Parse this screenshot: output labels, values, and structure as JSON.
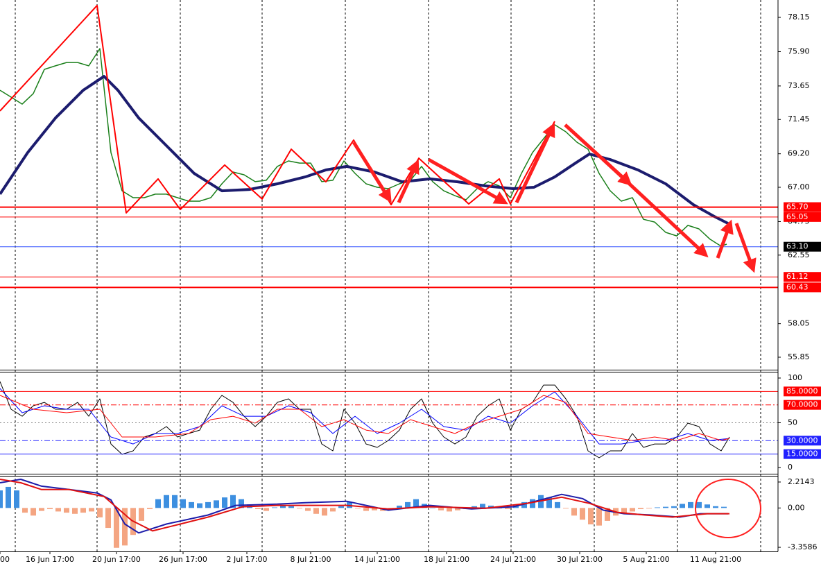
{
  "chart_data": [
    {
      "type": "line",
      "xlim": [
        0,
        280.5
      ],
      "ylim": [
        55.03,
        79.29
      ],
      "yticks": [
        78.15,
        {
          "value": 75.9,
          "label": "75.90"
        },
        73.65,
        71.45,
        {
          "value": 69.2,
          "label": "69.20"
        },
        {
          "value": 67,
          "label": "67.00"
        },
        64.75,
        62.55,
        58.05,
        55.85
      ],
      "series": [
        {
          "color": "#1a7f1a",
          "width": 1.5,
          "x": [
            0,
            4,
            8,
            12,
            16,
            20,
            24,
            28,
            32,
            36,
            40,
            44,
            48,
            52,
            56,
            60,
            64,
            68,
            72,
            76,
            80,
            84,
            88,
            92,
            96,
            100,
            104,
            108,
            112,
            116,
            120,
            124,
            128,
            132,
            136,
            140,
            144,
            148,
            152,
            156,
            160,
            164,
            168,
            172,
            176,
            180,
            184,
            188,
            192,
            196,
            200,
            204,
            208,
            212,
            216,
            220,
            224,
            228,
            232,
            236,
            240,
            244,
            248,
            252,
            256,
            260,
            262
          ],
          "values": [
            73.37,
            72.92,
            72.46,
            73.15,
            74.74,
            74.97,
            75.19,
            75.19,
            74.97,
            76.1,
            69.28,
            66.77,
            66.32,
            66.32,
            66.55,
            66.55,
            66.32,
            66.09,
            66.09,
            66.32,
            67.23,
            68.0,
            67.82,
            67.37,
            67.46,
            68.37,
            68.73,
            68.59,
            68.59,
            67.37,
            67.46,
            68.73,
            67.91,
            67.23,
            67.0,
            66.91,
            67.23,
            67.46,
            68.37,
            67.37,
            66.77,
            66.45,
            66.18,
            66.91,
            67.37,
            67.09,
            66.32,
            67.91,
            69.28,
            70.19,
            71.1,
            70.64,
            69.96,
            69.5,
            67.91,
            66.77,
            66.09,
            66.32,
            64.9,
            64.72,
            64.04,
            63.81,
            64.5,
            64.27,
            63.59,
            63.13,
            63.27
          ]
        },
        {
          "color": "#1c1c6e",
          "width": 4,
          "x": [
            0,
            10,
            20,
            30,
            37.5,
            42.5,
            50,
            60,
            70,
            80,
            90,
            100,
            110,
            117.5,
            125,
            135,
            145,
            155,
            165,
            175,
            185,
            192.5,
            200,
            207.5,
            212.5,
            220,
            230,
            240,
            250,
            257.5,
            262.5
          ],
          "values": [
            66.55,
            69.28,
            71.55,
            73.37,
            74.28,
            73.37,
            71.55,
            69.73,
            67.91,
            66.77,
            66.86,
            67.23,
            67.68,
            68.14,
            68.37,
            68.0,
            67.36,
            67.55,
            67.36,
            67.09,
            66.91,
            67.0,
            67.68,
            68.59,
            69.18,
            68.82,
            68.14,
            67.23,
            65.86,
            65.09,
            64.63
          ]
        },
        {
          "color": "#ff0000",
          "width": 2,
          "x": [
            0,
            35,
            45.5,
            57,
            65,
            81,
            94.5,
            105,
            117.5,
            127.5,
            141,
            151,
            169,
            180,
            184,
            200
          ],
          "values": [
            72.01,
            78.93,
            65.32,
            67.55,
            65.54,
            68.46,
            66.23,
            69.5,
            67.36,
            70.1,
            65.86,
            68.91,
            65.91,
            67.55,
            65.91,
            71.33
          ]
        }
      ],
      "levels": [
        {
          "value": 65.7,
          "label": "65.70",
          "color": "#ff0000",
          "box": "#ff0000",
          "width": 2,
          "style": "solid"
        },
        {
          "value": 65.05,
          "label": "65.05",
          "color": "#ff0000",
          "box": "#ff0000",
          "width": 1,
          "style": "solid"
        },
        {
          "value": 63.1,
          "label": "63.10",
          "color": "#3050ff",
          "box": "#000000",
          "width": 1,
          "style": "solid"
        },
        {
          "value": 61.12,
          "label": "61.12",
          "color": "#ff0000",
          "box": "#ff0000",
          "width": 1,
          "style": "solid"
        },
        {
          "value": 60.43,
          "label": "60.43",
          "color": "#ff0000",
          "box": "#ff0000",
          "width": 2,
          "style": "solid"
        }
      ]
    },
    {
      "type": "line",
      "xlim": [
        0,
        280.5
      ],
      "ylim": [
        -7,
        106.2
      ],
      "yticks": [
        100,
        50,
        0
      ],
      "series": [
        {
          "color": "#000000",
          "width": 1,
          "x": [
            0,
            4,
            8,
            12,
            16,
            20,
            24,
            28,
            32,
            36,
            40,
            44,
            48,
            52,
            56,
            60,
            64,
            68,
            72,
            76,
            80,
            84,
            88,
            92,
            96,
            100,
            104,
            108,
            112,
            116,
            120,
            124,
            128,
            132,
            136,
            140,
            144,
            148,
            152,
            156,
            160,
            164,
            168,
            172,
            176,
            180,
            184,
            188,
            192,
            196,
            200,
            204,
            208,
            212,
            216,
            220,
            224,
            228,
            232,
            236,
            240,
            244,
            248,
            252,
            256,
            260,
            263
          ],
          "values": [
            96.1,
            65.1,
            57.3,
            69.0,
            72.8,
            65.1,
            65.1,
            72.8,
            57.3,
            76.7,
            26.3,
            14.7,
            18.6,
            34.1,
            38.0,
            45.7,
            34.1,
            38.0,
            41.8,
            65.1,
            80.6,
            72.8,
            57.3,
            45.7,
            57.3,
            72.8,
            76.7,
            65.1,
            65.1,
            26.3,
            18.6,
            65.1,
            49.6,
            26.3,
            22.5,
            30.2,
            41.8,
            65.1,
            76.7,
            49.6,
            34.1,
            26.3,
            34.1,
            57.3,
            69.0,
            76.7,
            41.8,
            65.1,
            72.8,
            92.2,
            92.2,
            76.7,
            57.3,
            18.6,
            10.8,
            18.6,
            18.6,
            38.0,
            22.5,
            26.3,
            26.3,
            34.1,
            49.6,
            45.7,
            26.3,
            18.6,
            34.1
          ]
        },
        {
          "color": "#0000ff",
          "width": 1,
          "x": [
            0,
            8,
            16,
            24,
            32,
            40,
            48,
            56,
            64,
            72,
            80,
            88,
            96,
            104,
            112,
            120,
            128,
            136,
            144,
            152,
            160,
            168,
            176,
            184,
            192,
            200,
            208,
            216,
            224,
            232,
            240,
            248,
            256,
            263
          ],
          "values": [
            88.3,
            61.2,
            69.0,
            65.1,
            65.1,
            34.1,
            26.3,
            38.0,
            38.0,
            45.7,
            69.0,
            57.3,
            57.3,
            69.0,
            61.2,
            38.0,
            57.3,
            38.0,
            49.6,
            65.1,
            45.7,
            41.8,
            57.3,
            49.6,
            69.0,
            84.5,
            57.3,
            26.3,
            26.3,
            30.2,
            30.2,
            38.0,
            30.2,
            32.5
          ]
        },
        {
          "color": "#ff0000",
          "width": 1,
          "x": [
            0,
            12,
            24,
            36,
            44,
            56,
            68,
            76,
            84,
            92,
            100,
            108,
            116,
            124,
            132,
            140,
            148,
            156,
            164,
            172,
            180,
            188,
            196,
            204,
            212,
            220,
            228,
            236,
            244,
            252,
            260,
            263
          ],
          "values": [
            80.6,
            65.1,
            61.2,
            65.1,
            34.1,
            34.1,
            38.0,
            53.5,
            57.3,
            49.6,
            65.1,
            65.1,
            45.7,
            53.5,
            41.8,
            38.0,
            53.5,
            45.7,
            38.0,
            49.6,
            57.3,
            65.1,
            80.6,
            72.8,
            38.0,
            34.1,
            30.2,
            34.1,
            30.2,
            38.0,
            30.2,
            32.5
          ]
        }
      ],
      "levels": [
        {
          "value": 85,
          "label": "85.0000",
          "color": "#ff0000",
          "box": "#ff0000",
          "width": 1,
          "style": "solid"
        },
        {
          "value": 70,
          "label": "70.0000",
          "color": "#ff0000",
          "box": "#ff0000",
          "width": 1,
          "style": "dashdot"
        },
        {
          "value": 50,
          "color": "#888888",
          "width": 1,
          "style": "dotted"
        },
        {
          "value": 30,
          "label": "30.0000",
          "color": "#2020ff",
          "box": "#2020ff",
          "width": 1,
          "style": "dashdot"
        },
        {
          "value": 15,
          "label": "15.0000",
          "color": "#2020ff",
          "box": "#2020ff",
          "width": 1,
          "style": "solid"
        }
      ]
    },
    {
      "type": "macd",
      "xlim": [
        0,
        280.5
      ],
      "ylim": [
        -3.71,
        2.684
      ],
      "yticks": [
        2.2143,
        {
          "value": 0,
          "label": "0.00"
        },
        -3.3586
      ],
      "xticks": [
        {
          "value": 0,
          "label": "00"
        },
        {
          "value": 18,
          "label": "16 Jun 17:00"
        },
        {
          "value": 42,
          "label": "20 Jun 17:00"
        },
        {
          "value": 66,
          "label": "26 Jun 17:00"
        },
        {
          "value": 89,
          "label": "2 Jul 17:00"
        },
        {
          "value": 112,
          "label": "8 Jul 21:00"
        },
        {
          "value": 136,
          "label": "14 Jul 21:00"
        },
        {
          "value": 161,
          "label": "18 Jul 21:00"
        },
        {
          "value": 185,
          "label": "24 Jul 21:00"
        },
        {
          "value": 209,
          "label": "30 Jul 21:00"
        },
        {
          "value": 233,
          "label": "5 Aug 21:00"
        },
        {
          "value": 258,
          "label": "11 Aug 21:00"
        }
      ],
      "histogram": {
        "positive_color": "#3d8fe0",
        "negative_color": "#f4a582",
        "x": [
          0,
          3,
          6,
          9,
          12,
          15,
          18,
          21,
          24,
          27,
          30,
          33,
          36,
          39,
          42,
          45,
          48,
          51,
          54,
          57,
          60,
          63,
          66,
          69,
          72,
          75,
          78,
          81,
          84,
          87,
          90,
          93,
          96,
          99,
          102,
          105,
          108,
          111,
          114,
          117,
          120,
          123,
          126,
          129,
          132,
          135,
          138,
          141,
          144,
          147,
          150,
          153,
          156,
          159,
          162,
          165,
          168,
          171,
          174,
          177,
          180,
          183,
          186,
          189,
          192,
          195,
          198,
          201,
          204,
          207,
          210,
          213,
          216,
          219,
          222,
          225,
          228,
          231,
          234,
          237,
          240,
          243,
          246,
          249,
          252,
          255,
          258,
          261
        ],
        "values": [
          1.5,
          1.8,
          1.5,
          -0.4,
          -0.65,
          -0.25,
          -0.1,
          -0.3,
          -0.4,
          -0.5,
          -0.4,
          -0.3,
          -0.8,
          -1.7,
          -3.4,
          -3.2,
          -2.3,
          -1.1,
          -0.1,
          0.75,
          1.1,
          1.1,
          0.75,
          0.5,
          0.4,
          0.5,
          0.65,
          0.9,
          1.1,
          0.75,
          0.3,
          -0.1,
          -0.25,
          0.05,
          0.2,
          0.15,
          -0.05,
          -0.25,
          -0.5,
          -0.65,
          -0.3,
          0.15,
          0.5,
          -0.05,
          -0.25,
          -0.2,
          -0.25,
          -0.1,
          0.2,
          0.5,
          0.75,
          0.35,
          0,
          -0.2,
          -0.3,
          -0.2,
          -0.1,
          0.15,
          0.35,
          0.2,
          -0.05,
          -0.1,
          0.2,
          0.5,
          0.75,
          1.1,
          0.9,
          0.5,
          -0.05,
          -0.65,
          -1.0,
          -1.4,
          -1.5,
          -1.1,
          -0.65,
          -0.4,
          -0.3,
          -0.1,
          -0.05,
          0.05,
          0.1,
          0.15,
          0.35,
          0.5,
          0.5,
          0.3,
          0.15,
          0.1
        ]
      },
      "series": [
        {
          "color": "#1c1caa",
          "width": 2,
          "x": [
            0,
            7.5,
            15,
            25,
            35,
            40,
            45,
            50,
            60,
            75,
            85,
            100,
            110,
            125,
            140,
            155,
            170,
            185,
            195,
            202.5,
            210,
            217.5,
            225,
            235,
            245,
            252.5,
            262.5
          ],
          "values": [
            2.15,
            2.45,
            1.86,
            1.57,
            1.28,
            0.69,
            -1.37,
            -2.13,
            -1.37,
            -0.6,
            0.22,
            0.33,
            0.45,
            0.57,
            -0.19,
            0.22,
            -0.08,
            0.1,
            0.69,
            1.16,
            0.8,
            -0.19,
            -0.49,
            -0.6,
            -0.78,
            -0.49,
            -0.49
          ]
        },
        {
          "color": "#e01010",
          "width": 2,
          "x": [
            0,
            7.5,
            15,
            25,
            37.5,
            47.5,
            55,
            65,
            75,
            87.5,
            100,
            125,
            140,
            155,
            175,
            190,
            202.5,
            212.5,
            222.5,
            232.5,
            242.5,
            250,
            255,
            263
          ],
          "values": [
            2.45,
            2.15,
            1.57,
            1.57,
            0.98,
            -1.07,
            -1.96,
            -1.37,
            -0.78,
            0.1,
            0.22,
            0.22,
            -0.08,
            0.1,
            -0.02,
            0.39,
            0.92,
            0.39,
            -0.37,
            -0.6,
            -0.78,
            -0.6,
            -0.49,
            -0.49
          ]
        }
      ]
    }
  ]
}
